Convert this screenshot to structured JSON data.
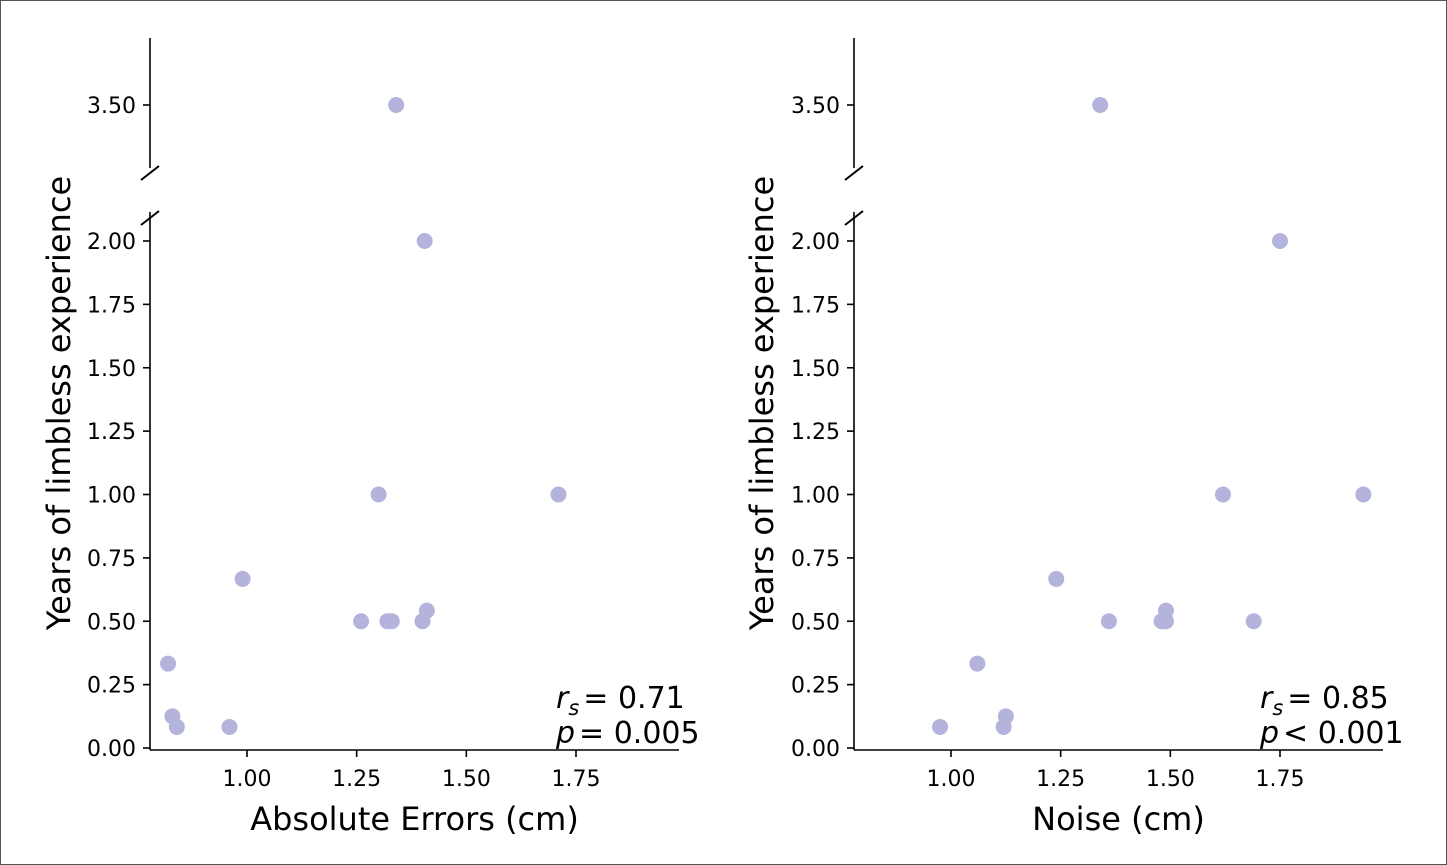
{
  "chart_data": [
    {
      "type": "scatter",
      "xlabel": "Absolute Errors (cm)",
      "ylabel": "Years of limbless experience",
      "xlim": [
        0.81,
        1.99
      ],
      "x_ticks": [
        "1.00",
        "1.25",
        "1.50",
        "1.75"
      ],
      "y_ticks_lower": [
        "0.00",
        "0.25",
        "0.50",
        "0.75",
        "1.00",
        "1.25",
        "1.50",
        "1.75",
        "2.00"
      ],
      "y_ticks_upper": [
        "3.50"
      ],
      "ylim_lower": [
        -0.02,
        2.1
      ],
      "ylim_upper": [
        3.24,
        3.76
      ],
      "broken_y_axis": true,
      "grid": false,
      "marker_color": "#b3b3dc",
      "points": [
        {
          "x": 1.34,
          "y": 3.5
        },
        {
          "x": 1.405,
          "y": 2.0
        },
        {
          "x": 1.3,
          "y": 1.0
        },
        {
          "x": 1.71,
          "y": 1.0
        },
        {
          "x": 0.99,
          "y": 0.667
        },
        {
          "x": 1.26,
          "y": 0.5
        },
        {
          "x": 1.32,
          "y": 0.5
        },
        {
          "x": 1.33,
          "y": 0.5
        },
        {
          "x": 1.4,
          "y": 0.5
        },
        {
          "x": 1.41,
          "y": 0.542
        },
        {
          "x": 0.82,
          "y": 0.333
        },
        {
          "x": 0.83,
          "y": 0.125
        },
        {
          "x": 0.84,
          "y": 0.083
        },
        {
          "x": 0.96,
          "y": 0.083
        }
      ],
      "annotation": {
        "r_label": "r",
        "r_sub": "s",
        "r_value": "= 0.71",
        "p_label": "p",
        "p_value": "= 0.005"
      }
    },
    {
      "type": "scatter",
      "xlabel": "Noise (cm)",
      "ylabel": "Years of limbless experience",
      "xlim": [
        0.81,
        1.99
      ],
      "x_ticks": [
        "1.00",
        "1.25",
        "1.50",
        "1.75"
      ],
      "y_ticks_lower": [
        "0.00",
        "0.25",
        "0.50",
        "0.75",
        "1.00",
        "1.25",
        "1.50",
        "1.75",
        "2.00"
      ],
      "y_ticks_upper": [
        "3.50"
      ],
      "ylim_lower": [
        -0.02,
        2.1
      ],
      "ylim_upper": [
        3.24,
        3.76
      ],
      "broken_y_axis": true,
      "grid": false,
      "marker_color": "#b3b3dc",
      "points": [
        {
          "x": 1.34,
          "y": 3.5
        },
        {
          "x": 1.75,
          "y": 2.0
        },
        {
          "x": 1.62,
          "y": 1.0
        },
        {
          "x": 1.94,
          "y": 1.0
        },
        {
          "x": 1.24,
          "y": 0.667
        },
        {
          "x": 1.36,
          "y": 0.5
        },
        {
          "x": 1.48,
          "y": 0.5
        },
        {
          "x": 1.49,
          "y": 0.5
        },
        {
          "x": 1.69,
          "y": 0.5
        },
        {
          "x": 1.49,
          "y": 0.542
        },
        {
          "x": 1.06,
          "y": 0.333
        },
        {
          "x": 1.125,
          "y": 0.125
        },
        {
          "x": 1.12,
          "y": 0.083
        },
        {
          "x": 0.975,
          "y": 0.083
        }
      ],
      "annotation": {
        "r_label": "r",
        "r_sub": "s",
        "r_value": "= 0.85",
        "p_label": "p",
        "p_value": "< 0.001"
      }
    }
  ]
}
